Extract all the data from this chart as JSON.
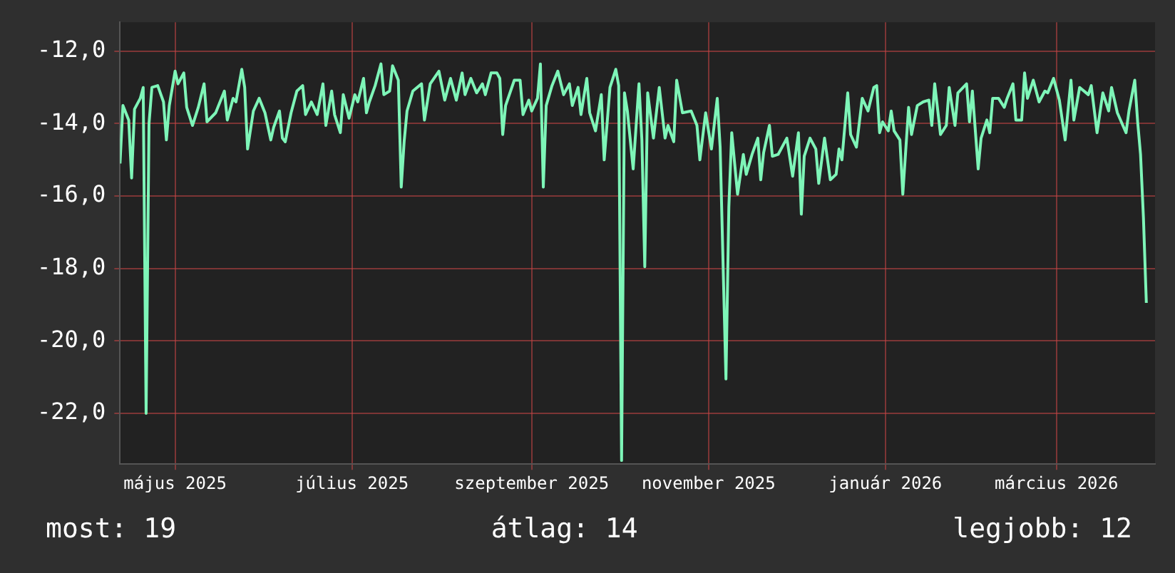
{
  "chart_data": {
    "type": "line",
    "x": [
      "2025-04-12",
      "2025-04-13",
      "2025-04-15",
      "2025-04-16",
      "2025-04-17",
      "2025-04-19",
      "2025-04-20",
      "2025-04-21",
      "2025-04-22",
      "2025-04-23",
      "2025-04-25",
      "2025-04-27",
      "2025-04-28",
      "2025-04-29",
      "2025-05-01",
      "2025-05-02",
      "2025-05-04",
      "2025-05-05",
      "2025-05-07",
      "2025-05-09",
      "2025-05-11",
      "2025-05-12",
      "2025-05-15",
      "2025-05-16",
      "2025-05-18",
      "2025-05-19",
      "2025-05-21",
      "2025-05-22",
      "2025-05-24",
      "2025-05-25",
      "2025-05-26",
      "2025-05-28",
      "2025-05-30",
      "2025-06-01",
      "2025-06-03",
      "2025-06-04",
      "2025-06-06",
      "2025-06-07",
      "2025-06-08",
      "2025-06-10",
      "2025-06-12",
      "2025-06-14",
      "2025-06-15",
      "2025-06-17",
      "2025-06-19",
      "2025-06-21",
      "2025-06-22",
      "2025-06-24",
      "2025-06-25",
      "2025-06-27",
      "2025-06-28",
      "2025-06-30",
      "2025-07-02",
      "2025-07-03",
      "2025-07-05",
      "2025-07-06",
      "2025-07-07",
      "2025-07-09",
      "2025-07-11",
      "2025-07-12",
      "2025-07-14",
      "2025-07-15",
      "2025-07-17",
      "2025-07-18",
      "2025-07-19",
      "2025-07-20",
      "2025-07-22",
      "2025-07-25",
      "2025-07-26",
      "2025-07-28",
      "2025-07-31",
      "2025-08-02",
      "2025-08-04",
      "2025-08-06",
      "2025-08-08",
      "2025-08-09",
      "2025-08-11",
      "2025-08-13",
      "2025-08-15",
      "2025-08-16",
      "2025-08-18",
      "2025-08-20",
      "2025-08-21",
      "2025-08-22",
      "2025-08-23",
      "2025-08-26",
      "2025-08-28",
      "2025-08-29",
      "2025-08-31",
      "2025-09-01",
      "2025-09-03",
      "2025-09-04",
      "2025-09-05",
      "2025-09-06",
      "2025-09-08",
      "2025-09-10",
      "2025-09-12",
      "2025-09-14",
      "2025-09-15",
      "2025-09-17",
      "2025-09-18",
      "2025-09-20",
      "2025-09-21",
      "2025-09-23",
      "2025-09-25",
      "2025-09-26",
      "2025-09-28",
      "2025-09-30",
      "2025-10-01",
      "2025-10-02",
      "2025-10-03",
      "2025-10-04",
      "2025-10-06",
      "2025-10-08",
      "2025-10-09",
      "2025-10-10",
      "2025-10-11",
      "2025-10-13",
      "2025-10-15",
      "2025-10-17",
      "2025-10-18",
      "2025-10-20",
      "2025-10-21",
      "2025-10-23",
      "2025-10-26",
      "2025-10-28",
      "2025-10-29",
      "2025-10-31",
      "2025-11-02",
      "2025-11-04",
      "2025-11-05",
      "2025-11-07",
      "2025-11-08",
      "2025-11-09",
      "2025-11-11",
      "2025-11-13",
      "2025-11-14",
      "2025-11-16",
      "2025-11-18",
      "2025-11-19",
      "2025-11-20",
      "2025-11-22",
      "2025-11-23",
      "2025-11-25",
      "2025-11-28",
      "2025-11-30",
      "2025-12-02",
      "2025-12-03",
      "2025-12-04",
      "2025-12-06",
      "2025-12-08",
      "2025-12-09",
      "2025-12-11",
      "2025-12-13",
      "2025-12-15",
      "2025-12-16",
      "2025-12-17",
      "2025-12-19",
      "2025-12-20",
      "2025-12-22",
      "2025-12-24",
      "2025-12-26",
      "2025-12-28",
      "2025-12-29",
      "2025-12-30",
      "2025-12-31",
      "2026-01-02",
      "2026-01-03",
      "2026-01-04",
      "2026-01-06",
      "2026-01-07",
      "2026-01-09",
      "2026-01-10",
      "2026-01-12",
      "2026-01-14",
      "2026-01-16",
      "2026-01-17",
      "2026-01-18",
      "2026-01-20",
      "2026-01-22",
      "2026-01-23",
      "2026-01-25",
      "2026-01-26",
      "2026-01-29",
      "2026-01-30",
      "2026-01-31",
      "2026-02-02",
      "2026-02-03",
      "2026-02-05",
      "2026-02-06",
      "2026-02-07",
      "2026-02-09",
      "2026-02-11",
      "2026-02-12",
      "2026-02-14",
      "2026-02-15",
      "2026-02-17",
      "2026-02-18",
      "2026-02-19",
      "2026-02-21",
      "2026-02-23",
      "2026-02-25",
      "2026-02-26",
      "2026-02-28",
      "2026-03-02",
      "2026-03-04",
      "2026-03-06",
      "2026-03-07",
      "2026-03-09",
      "2026-03-12",
      "2026-03-13",
      "2026-03-15",
      "2026-03-17",
      "2026-03-19",
      "2026-03-20",
      "2026-03-22",
      "2026-03-25",
      "2026-03-26",
      "2026-03-28",
      "2026-03-29",
      "2026-03-30",
      "2026-03-31",
      "2026-04-01"
    ],
    "series": [
      {
        "color": "#7ef5b8",
        "values": [
          -15.1,
          -13.5,
          -13.9,
          -15.5,
          -13.6,
          -13.3,
          -13.0,
          -22.0,
          -14.0,
          -13.0,
          -12.95,
          -13.4,
          -14.45,
          -13.5,
          -12.55,
          -12.9,
          -12.6,
          -13.55,
          -14.05,
          -13.55,
          -12.9,
          -13.95,
          -13.7,
          -13.5,
          -13.1,
          -13.9,
          -13.3,
          -13.4,
          -12.5,
          -13.0,
          -14.7,
          -13.65,
          -13.3,
          -13.7,
          -14.45,
          -14.1,
          -13.65,
          -14.4,
          -14.5,
          -13.7,
          -13.1,
          -12.95,
          -13.75,
          -13.4,
          -13.75,
          -12.9,
          -14.05,
          -13.1,
          -13.75,
          -14.25,
          -13.2,
          -13.85,
          -13.2,
          -13.4,
          -12.75,
          -13.7,
          -13.4,
          -12.95,
          -12.35,
          -13.2,
          -13.1,
          -12.4,
          -12.8,
          -15.75,
          -14.5,
          -13.65,
          -13.1,
          -12.9,
          -13.9,
          -12.9,
          -12.55,
          -13.35,
          -12.75,
          -13.35,
          -12.6,
          -13.2,
          -12.75,
          -13.15,
          -12.9,
          -13.2,
          -12.6,
          -12.6,
          -12.75,
          -14.3,
          -13.5,
          -12.8,
          -12.8,
          -13.75,
          -13.35,
          -13.65,
          -13.3,
          -12.35,
          -15.75,
          -13.5,
          -12.95,
          -12.55,
          -13.2,
          -12.9,
          -13.5,
          -13.0,
          -13.75,
          -12.75,
          -13.7,
          -14.2,
          -13.2,
          -15.0,
          -13.0,
          -12.5,
          -12.95,
          -23.3,
          -13.15,
          -13.65,
          -15.25,
          -12.9,
          -14.45,
          -17.95,
          -13.15,
          -14.4,
          -13.0,
          -14.4,
          -14.05,
          -14.5,
          -12.8,
          -13.7,
          -13.65,
          -14.05,
          -15.0,
          -13.7,
          -14.7,
          -13.3,
          -14.65,
          -21.05,
          -16.3,
          -14.25,
          -15.95,
          -14.85,
          -15.4,
          -14.85,
          -14.4,
          -15.55,
          -14.8,
          -14.05,
          -14.9,
          -14.85,
          -14.4,
          -15.45,
          -14.25,
          -16.5,
          -14.9,
          -14.4,
          -14.7,
          -15.65,
          -14.4,
          -15.55,
          -15.4,
          -14.7,
          -15.0,
          -13.15,
          -14.3,
          -14.65,
          -13.3,
          -13.65,
          -13.0,
          -12.95,
          -14.25,
          -13.95,
          -14.2,
          -13.65,
          -14.2,
          -14.45,
          -15.95,
          -13.55,
          -14.3,
          -13.5,
          -13.4,
          -13.35,
          -14.05,
          -12.9,
          -14.3,
          -14.05,
          -13.0,
          -14.05,
          -13.15,
          -12.9,
          -13.95,
          -13.1,
          -15.25,
          -14.4,
          -13.9,
          -14.25,
          -13.3,
          -13.3,
          -13.55,
          -13.3,
          -12.9,
          -13.9,
          -13.9,
          -12.6,
          -13.3,
          -12.8,
          -13.4,
          -13.1,
          -13.15,
          -12.75,
          -13.35,
          -14.45,
          -12.8,
          -13.9,
          -13.0,
          -13.2,
          -12.95,
          -14.25,
          -13.15,
          -13.65,
          -13.0,
          -13.7,
          -14.25,
          -13.65,
          -12.8,
          -13.95,
          -14.85,
          -16.6,
          -18.95
        ]
      }
    ],
    "xlim": [
      "2025-04-12",
      "2026-04-04"
    ],
    "xticks": [
      {
        "value": "2025-05-01",
        "label": "május 2025"
      },
      {
        "value": "2025-07-01",
        "label": "július 2025"
      },
      {
        "value": "2025-09-01",
        "label": "szeptember 2025"
      },
      {
        "value": "2025-11-01",
        "label": "november 2025"
      },
      {
        "value": "2026-01-01",
        "label": "január 2026"
      },
      {
        "value": "2026-03-01",
        "label": "március 2026"
      }
    ],
    "ylim": [
      -23.4,
      -11.2
    ],
    "yticks": [
      {
        "value": -12,
        "label": "-12,0"
      },
      {
        "value": -14,
        "label": "-14,0"
      },
      {
        "value": -16,
        "label": "-16,0"
      },
      {
        "value": -18,
        "label": "-18,0"
      },
      {
        "value": -20,
        "label": "-20,0"
      },
      {
        "value": -22,
        "label": "-22,0"
      }
    ],
    "grid": true,
    "marker": "none",
    "line_style": "solid",
    "annotations": [
      "most: 19",
      "átlag: 14",
      "legjobb: 12"
    ]
  }
}
